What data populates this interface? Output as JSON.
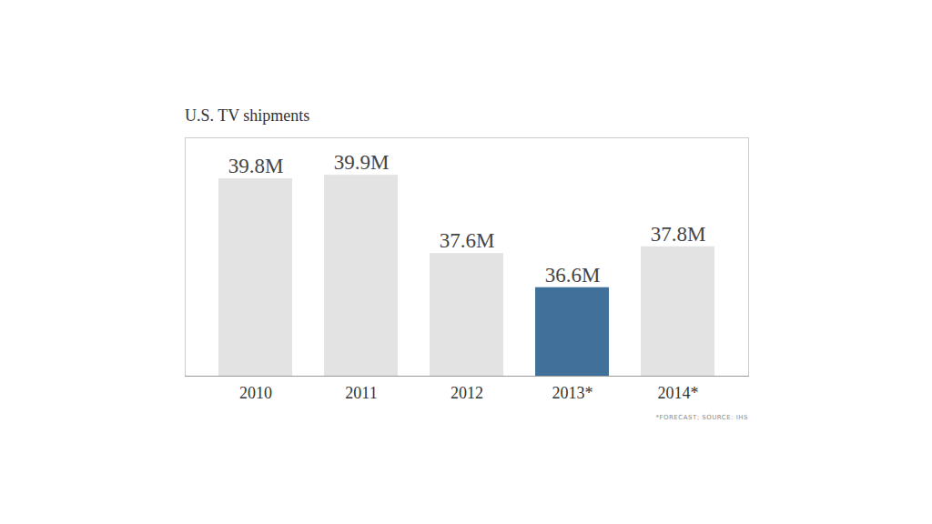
{
  "chart_data": {
    "type": "bar",
    "title": "U.S. TV shipments",
    "caption": "*FORECAST; SOURCE: IHS",
    "categories": [
      "2010",
      "2011",
      "2012",
      "2013*",
      "2014*"
    ],
    "values": [
      39.8,
      39.9,
      37.6,
      36.6,
      37.8
    ],
    "value_labels": [
      "39.8M",
      "39.9M",
      "37.6M",
      "36.6M",
      "37.8M"
    ],
    "colors": [
      "#e3e3e3",
      "#e3e3e3",
      "#e3e3e3",
      "#41709a",
      "#e3e3e3"
    ],
    "data_labels": true,
    "tick_labels": "x",
    "grid": false,
    "ylim": [
      34,
      41
    ],
    "yticks": []
  }
}
